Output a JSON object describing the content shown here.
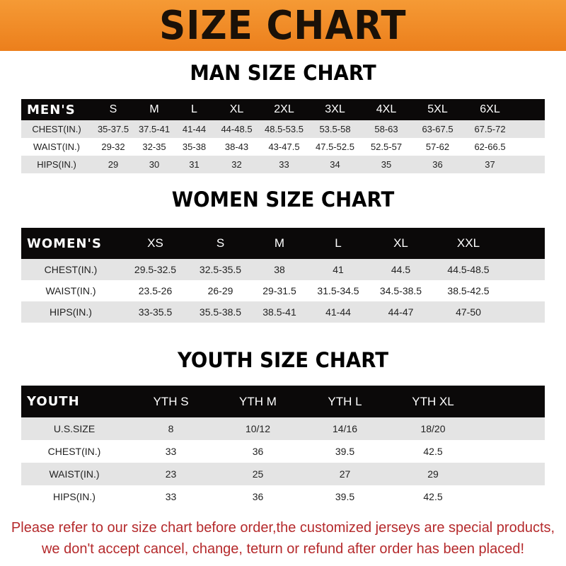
{
  "banner": {
    "title": "SIZE CHART",
    "color": "#F08A24"
  },
  "men": {
    "title": "MAN SIZE CHART",
    "headers": [
      "MEN'S",
      "S",
      "M",
      "L",
      "XL",
      "2XL",
      "3XL",
      "4XL",
      "5XL",
      "6XL"
    ],
    "rows": [
      [
        "CHEST(IN.)",
        "35-37.5",
        "37.5-41",
        "41-44",
        "44-48.5",
        "48.5-53.5",
        "53.5-58",
        "58-63",
        "63-67.5",
        "67.5-72"
      ],
      [
        "WAIST(IN.)",
        "29-32",
        "32-35",
        "35-38",
        "38-43",
        "43-47.5",
        "47.5-52.5",
        "52.5-57",
        "57-62",
        "62-66.5"
      ],
      [
        "HIPS(IN.)",
        "29",
        "30",
        "31",
        "32",
        "33",
        "34",
        "35",
        "36",
        "37"
      ]
    ]
  },
  "women": {
    "title": "WOMEN SIZE CHART",
    "headers": [
      "WOMEN'S",
      "XS",
      "S",
      "M",
      "L",
      "XL",
      "XXL"
    ],
    "rows": [
      [
        "CHEST(IN.)",
        "29.5-32.5",
        "32.5-35.5",
        "38",
        "41",
        "44.5",
        "44.5-48.5"
      ],
      [
        "WAIST(IN.)",
        "23.5-26",
        "26-29",
        "29-31.5",
        "31.5-34.5",
        "34.5-38.5",
        "38.5-42.5"
      ],
      [
        "HIPS(IN.)",
        "33-35.5",
        "35.5-38.5",
        "38.5-41",
        "41-44",
        "44-47",
        "47-50"
      ]
    ]
  },
  "youth": {
    "title": "YOUTH SIZE CHART",
    "headers": [
      "YOUTH",
      "YTH S",
      "YTH M",
      "YTH L",
      "YTH XL"
    ],
    "rows": [
      [
        "U.S.SIZE",
        "8",
        "10/12",
        "14/16",
        "18/20"
      ],
      [
        "CHEST(IN.)",
        "33",
        "36",
        "39.5",
        "42.5"
      ],
      [
        "WAIST(IN.)",
        "23",
        "25",
        "27",
        "29"
      ],
      [
        "HIPS(IN.)",
        "33",
        "36",
        "39.5",
        "42.5"
      ]
    ]
  },
  "footer": {
    "line1": "Please refer to our size chart before order,the customized jerseys are special products,",
    "line2": "we don't accept cancel, change, teturn or refund after order has been placed!",
    "color": "#B52A2C"
  }
}
